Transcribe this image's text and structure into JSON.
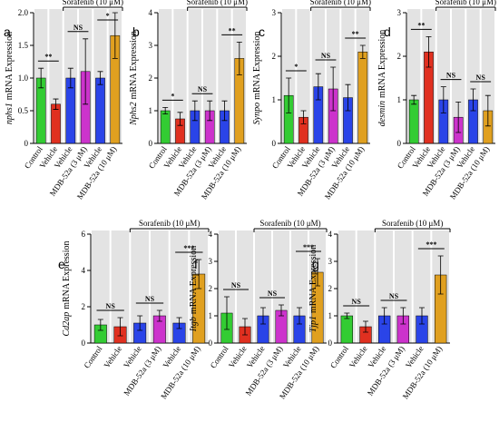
{
  "chart_data": [
    {
      "type": "bar",
      "panel": "a",
      "gene": "nphs1",
      "ylabel": "mRNA Expression",
      "group_label": "Sorafenib (10 μM)",
      "categories": [
        "Control",
        "Vehicle",
        "Vehicle",
        "MDB-52a (3 μM)",
        "Vehicle",
        "MDB-52a (10 μM)"
      ],
      "colors": [
        "#33cc33",
        "#e03020",
        "#2a44e8",
        "#cc33cc",
        "#2a44e8",
        "#e0a020"
      ],
      "values": [
        1.0,
        0.6,
        1.0,
        1.1,
        1.0,
        1.65
      ],
      "errors": [
        0.15,
        0.08,
        0.15,
        0.5,
        0.1,
        0.35
      ],
      "significance": [
        "**",
        "NS",
        "*"
      ],
      "ylim": [
        0,
        2
      ],
      "yticks": [
        0,
        0.5,
        {
          "value": 1,
          "label": "1.0"
        },
        1.5,
        {
          "value": 2,
          "label": "2.0"
        }
      ]
    },
    {
      "type": "bar",
      "panel": "b",
      "gene": "Nphs2",
      "ylabel": "mRNA Expression",
      "group_label": "Sorafenib (10 μM)",
      "categories": [
        "Control",
        "Vehicle",
        "Vehicle",
        "MDB-52a (3 μM)",
        "Vehicle",
        "MDB-52a (10 μM)"
      ],
      "colors": [
        "#33cc33",
        "#e03020",
        "#2a44e8",
        "#cc33cc",
        "#2a44e8",
        "#e0a020"
      ],
      "values": [
        1.0,
        0.75,
        1.0,
        1.0,
        1.0,
        2.6
      ],
      "errors": [
        0.1,
        0.2,
        0.3,
        0.3,
        0.3,
        0.5
      ],
      "significance": [
        "*",
        "NS",
        "**"
      ],
      "ylim": [
        0,
        4
      ],
      "yticks": [
        0,
        1,
        2,
        3,
        4
      ]
    },
    {
      "type": "bar",
      "panel": "c",
      "gene": "Synpo",
      "ylabel": "mRNA Expression",
      "group_label": "Sorafenib (10 μM)",
      "categories": [
        "Control",
        "Vehicle",
        "Vehicle",
        "MDB-52a (3 μM)",
        "Vehicle",
        "MDB-52a (10 μM)"
      ],
      "colors": [
        "#33cc33",
        "#e03020",
        "#2a44e8",
        "#cc33cc",
        "#2a44e8",
        "#e0a020"
      ],
      "values": [
        1.1,
        0.6,
        1.3,
        1.25,
        1.05,
        2.1
      ],
      "errors": [
        0.4,
        0.15,
        0.3,
        0.5,
        0.3,
        0.15
      ],
      "significance": [
        "*",
        "NS",
        "**"
      ],
      "ylim": [
        0,
        3
      ],
      "yticks": [
        0,
        1,
        2,
        3
      ]
    },
    {
      "type": "bar",
      "panel": "d",
      "gene": "desmin",
      "ylabel": "mRNA Expression",
      "group_label": "Sorafenib (10 μM)",
      "categories": [
        "Control",
        "Vehicle",
        "Vehicle",
        "MDB-52a (3 μM)",
        "Vehicle",
        "MDB-52a (10 μM)"
      ],
      "colors": [
        "#33cc33",
        "#e03020",
        "#2a44e8",
        "#cc33cc",
        "#2a44e8",
        "#e0a020"
      ],
      "values": [
        1.0,
        2.1,
        1.0,
        0.6,
        1.0,
        0.75
      ],
      "errors": [
        0.1,
        0.35,
        0.3,
        0.35,
        0.25,
        0.35
      ],
      "significance": [
        "**",
        "NS",
        "NS"
      ],
      "ylim": [
        0,
        3
      ],
      "yticks": [
        0,
        1,
        2,
        3
      ]
    },
    {
      "type": "bar",
      "panel": "e",
      "gene": "Cd2ap",
      "ylabel": "mRNA Expression",
      "group_label": "Sorafenib (10 μM)",
      "categories": [
        "Control",
        "Vehicle",
        "Vehicle",
        "MDB-52a (3 μM)",
        "Vehicle",
        "MDB-52a (10 μM)"
      ],
      "colors": [
        "#33cc33",
        "#e03020",
        "#2a44e8",
        "#cc33cc",
        "#2a44e8",
        "#e0a020"
      ],
      "values": [
        1.0,
        0.9,
        1.1,
        1.5,
        1.1,
        3.8
      ],
      "errors": [
        0.3,
        0.5,
        0.4,
        0.3,
        0.3,
        0.8
      ],
      "significance": [
        "NS",
        "NS",
        "***"
      ],
      "ylim": [
        0,
        6
      ],
      "yticks": [
        0,
        2,
        4,
        6
      ]
    },
    {
      "type": "bar",
      "panel": "f",
      "gene": "Itgb",
      "ylabel": "mRNA Expression",
      "group_label": "Sorafenib (10 μM)",
      "categories": [
        "Control",
        "Vehicle",
        "Vehicle",
        "MDB-52a (3 μM)",
        "Vehicle",
        "MDB-52a (10 μM)"
      ],
      "colors": [
        "#33cc33",
        "#e03020",
        "#2a44e8",
        "#cc33cc",
        "#2a44e8",
        "#e0a020"
      ],
      "values": [
        1.1,
        0.6,
        1.0,
        1.2,
        1.0,
        2.6
      ],
      "errors": [
        0.6,
        0.3,
        0.3,
        0.2,
        0.3,
        0.5
      ],
      "significance": [
        "NS",
        "NS",
        "***"
      ],
      "ylim": [
        0,
        4
      ],
      "yticks": [
        0,
        1,
        2,
        3,
        4
      ]
    },
    {
      "type": "bar",
      "panel": "g",
      "gene": "Tjp1",
      "ylabel": "mRNA Expression",
      "group_label": "Sorafenib (10 μM)",
      "categories": [
        "Control",
        "Vehicle",
        "Vehicle",
        "MDB-52a (3 μM)",
        "Vehicle",
        "MDB-52a (10 μM)"
      ],
      "colors": [
        "#33cc33",
        "#e03020",
        "#2a44e8",
        "#cc33cc",
        "#2a44e8",
        "#e0a020"
      ],
      "values": [
        1.0,
        0.6,
        1.0,
        1.0,
        1.0,
        2.5
      ],
      "errors": [
        0.1,
        0.2,
        0.3,
        0.3,
        0.3,
        0.7
      ],
      "significance": [
        "NS",
        "NS",
        "***"
      ],
      "ylim": [
        0,
        4
      ],
      "yticks": [
        0,
        1,
        2,
        3,
        4
      ]
    }
  ]
}
